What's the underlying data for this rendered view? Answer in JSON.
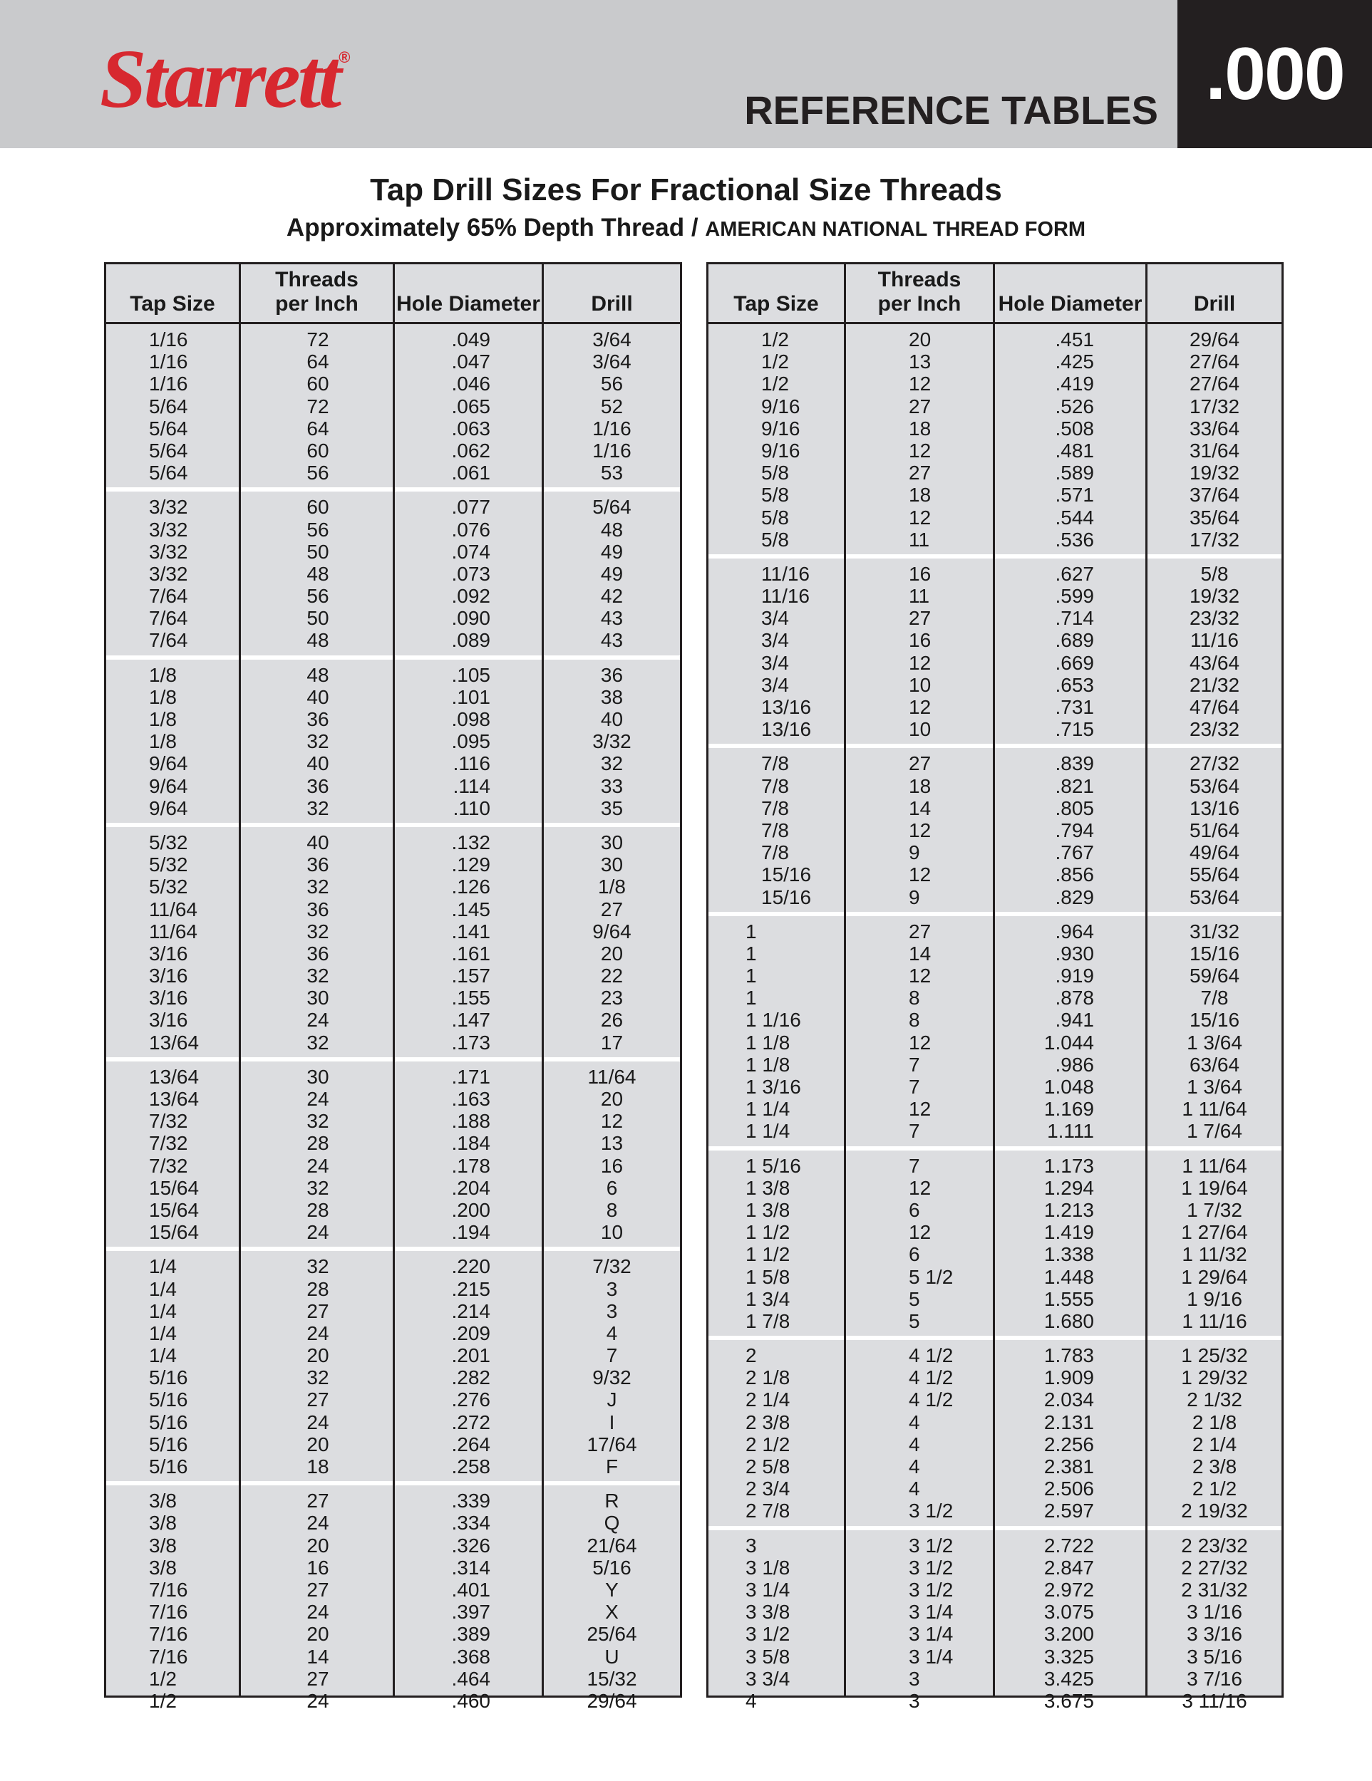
{
  "header": {
    "logo_text": "Starrett",
    "logo_mark": "®",
    "section_title": "REFERENCE TABLES",
    "badge": ".000",
    "brand_color": "#d7282f"
  },
  "title": "Tap Drill Sizes For Fractional Size Threads",
  "subtitle_main": "Approximately 65% Depth Thread / ",
  "subtitle_small": "AMERICAN NATIONAL THREAD FORM",
  "columns": [
    "Tap Size",
    "Threads\nper Inch",
    "Hole Diameter",
    "Drill"
  ],
  "tables": [
    {
      "groups": [
        [
          [
            "1/16",
            "72",
            ".049",
            "3/64"
          ],
          [
            "1/16",
            "64",
            ".047",
            "3/64"
          ],
          [
            "1/16",
            "60",
            ".046",
            "56"
          ],
          [
            "5/64",
            "72",
            ".065",
            "52"
          ],
          [
            "5/64",
            "64",
            ".063",
            "1/16"
          ],
          [
            "5/64",
            "60",
            ".062",
            "1/16"
          ],
          [
            "5/64",
            "56",
            ".061",
            "53"
          ]
        ],
        [
          [
            "3/32",
            "60",
            ".077",
            "5/64"
          ],
          [
            "3/32",
            "56",
            ".076",
            "48"
          ],
          [
            "3/32",
            "50",
            ".074",
            "49"
          ],
          [
            "3/32",
            "48",
            ".073",
            "49"
          ],
          [
            "7/64",
            "56",
            ".092",
            "42"
          ],
          [
            "7/64",
            "50",
            ".090",
            "43"
          ],
          [
            "7/64",
            "48",
            ".089",
            "43"
          ]
        ],
        [
          [
            "1/8",
            "48",
            ".105",
            "36"
          ],
          [
            "1/8",
            "40",
            ".101",
            "38"
          ],
          [
            "1/8",
            "36",
            ".098",
            "40"
          ],
          [
            "1/8",
            "32",
            ".095",
            "3/32"
          ],
          [
            "9/64",
            "40",
            ".116",
            "32"
          ],
          [
            "9/64",
            "36",
            ".114",
            "33"
          ],
          [
            "9/64",
            "32",
            ".110",
            "35"
          ]
        ],
        [
          [
            "5/32",
            "40",
            ".132",
            "30"
          ],
          [
            "5/32",
            "36",
            ".129",
            "30"
          ],
          [
            "5/32",
            "32",
            ".126",
            "1/8"
          ],
          [
            "11/64",
            "36",
            ".145",
            "27"
          ],
          [
            "11/64",
            "32",
            ".141",
            "9/64"
          ],
          [
            "3/16",
            "36",
            ".161",
            "20"
          ],
          [
            "3/16",
            "32",
            ".157",
            "22"
          ],
          [
            "3/16",
            "30",
            ".155",
            "23"
          ],
          [
            "3/16",
            "24",
            ".147",
            "26"
          ],
          [
            "13/64",
            "32",
            ".173",
            "17"
          ]
        ],
        [
          [
            "13/64",
            "30",
            ".171",
            "11/64"
          ],
          [
            "13/64",
            "24",
            ".163",
            "20"
          ],
          [
            "7/32",
            "32",
            ".188",
            "12"
          ],
          [
            "7/32",
            "28",
            ".184",
            "13"
          ],
          [
            "7/32",
            "24",
            ".178",
            "16"
          ],
          [
            "15/64",
            "32",
            ".204",
            "6"
          ],
          [
            "15/64",
            "28",
            ".200",
            "8"
          ],
          [
            "15/64",
            "24",
            ".194",
            "10"
          ]
        ],
        [
          [
            "1/4",
            "32",
            ".220",
            "7/32"
          ],
          [
            "1/4",
            "28",
            ".215",
            "3"
          ],
          [
            "1/4",
            "27",
            ".214",
            "3"
          ],
          [
            "1/4",
            "24",
            ".209",
            "4"
          ],
          [
            "1/4",
            "20",
            ".201",
            "7"
          ],
          [
            "5/16",
            "32",
            ".282",
            "9/32"
          ],
          [
            "5/16",
            "27",
            ".276",
            "J"
          ],
          [
            "5/16",
            "24",
            ".272",
            "I"
          ],
          [
            "5/16",
            "20",
            ".264",
            "17/64"
          ],
          [
            "5/16",
            "18",
            ".258",
            "F"
          ]
        ],
        [
          [
            "3/8",
            "27",
            ".339",
            "R"
          ],
          [
            "3/8",
            "24",
            ".334",
            "Q"
          ],
          [
            "3/8",
            "20",
            ".326",
            "21/64"
          ],
          [
            "3/8",
            "16",
            ".314",
            "5/16"
          ],
          [
            "7/16",
            "27",
            ".401",
            "Y"
          ],
          [
            "7/16",
            "24",
            ".397",
            "X"
          ],
          [
            "7/16",
            "20",
            ".389",
            "25/64"
          ],
          [
            "7/16",
            "14",
            ".368",
            "U"
          ],
          [
            "1/2",
            "27",
            ".464",
            "15/32"
          ],
          [
            "1/2",
            "24",
            ".460",
            "29/64"
          ]
        ]
      ]
    },
    {
      "groups": [
        [
          [
            "1/2",
            "20",
            ".451",
            "29/64"
          ],
          [
            "1/2",
            "13",
            ".425",
            "27/64"
          ],
          [
            "1/2",
            "12",
            ".419",
            "27/64"
          ],
          [
            "9/16",
            "27",
            ".526",
            "17/32"
          ],
          [
            "9/16",
            "18",
            ".508",
            "33/64"
          ],
          [
            "9/16",
            "12",
            ".481",
            "31/64"
          ],
          [
            "5/8",
            "27",
            ".589",
            "19/32"
          ],
          [
            "5/8",
            "18",
            ".571",
            "37/64"
          ],
          [
            "5/8",
            "12",
            ".544",
            "35/64"
          ],
          [
            "5/8",
            "11",
            ".536",
            "17/32"
          ]
        ],
        [
          [
            "11/16",
            "16",
            ".627",
            "5/8"
          ],
          [
            "11/16",
            "11",
            ".599",
            "19/32"
          ],
          [
            "3/4",
            "27",
            ".714",
            "23/32"
          ],
          [
            "3/4",
            "16",
            ".689",
            "11/16"
          ],
          [
            "3/4",
            "12",
            ".669",
            "43/64"
          ],
          [
            "3/4",
            "10",
            ".653",
            "21/32"
          ],
          [
            "13/16",
            "12",
            ".731",
            "47/64"
          ],
          [
            "13/16",
            "10",
            ".715",
            "23/32"
          ]
        ],
        [
          [
            "7/8",
            "27",
            ".839",
            "27/32"
          ],
          [
            "7/8",
            "18",
            ".821",
            "53/64"
          ],
          [
            "7/8",
            "14",
            ".805",
            "13/16"
          ],
          [
            "7/8",
            "12",
            ".794",
            "51/64"
          ],
          [
            "7/8",
            "9",
            ".767",
            "49/64"
          ],
          [
            "15/16",
            "12",
            ".856",
            "55/64"
          ],
          [
            "15/16",
            "9",
            ".829",
            "53/64"
          ]
        ],
        [
          [
            "1",
            "27",
            ".964",
            "31/32"
          ],
          [
            "1",
            "14",
            ".930",
            "15/16"
          ],
          [
            "1",
            "12",
            ".919",
            "59/64"
          ],
          [
            "1",
            "8",
            ".878",
            "7/8"
          ],
          [
            "1 1/16",
            "8",
            ".941",
            "15/16"
          ],
          [
            "1 1/8",
            "12",
            "1.044",
            "1 3/64"
          ],
          [
            "1 1/8",
            "7",
            ".986",
            "63/64"
          ],
          [
            "1 3/16",
            "7",
            "1.048",
            "1 3/64"
          ],
          [
            "1 1/4",
            "12",
            "1.169",
            "1 11/64"
          ],
          [
            "1 1/4",
            "7",
            "1.111",
            "1 7/64"
          ]
        ],
        [
          [
            "1 5/16",
            "7",
            "1.173",
            "1 11/64"
          ],
          [
            "1 3/8",
            "12",
            "1.294",
            "1 19/64"
          ],
          [
            "1 3/8",
            "6",
            "1.213",
            "1 7/32"
          ],
          [
            "1 1/2",
            "12",
            "1.419",
            "1 27/64"
          ],
          [
            "1 1/2",
            "6",
            "1.338",
            "1 11/32"
          ],
          [
            "1 5/8",
            "5 1/2",
            "1.448",
            "1 29/64"
          ],
          [
            "1 3/4",
            "5",
            "1.555",
            "1 9/16"
          ],
          [
            "1 7/8",
            "5",
            "1.680",
            "1 11/16"
          ]
        ],
        [
          [
            "2",
            "4 1/2",
            "1.783",
            "1 25/32"
          ],
          [
            "2 1/8",
            "4 1/2",
            "1.909",
            "1 29/32"
          ],
          [
            "2 1/4",
            "4 1/2",
            "2.034",
            "2 1/32"
          ],
          [
            "2 3/8",
            "4",
            "2.131",
            "2 1/8"
          ],
          [
            "2 1/2",
            "4",
            "2.256",
            "2 1/4"
          ],
          [
            "2 5/8",
            "4",
            "2.381",
            "2 3/8"
          ],
          [
            "2 3/4",
            "4",
            "2.506",
            "2 1/2"
          ],
          [
            "2 7/8",
            "3 1/2",
            "2.597",
            "2 19/32"
          ]
        ],
        [
          [
            "3",
            "3 1/2",
            "2.722",
            "2 23/32"
          ],
          [
            "3 1/8",
            "3 1/2",
            "2.847",
            "2 27/32"
          ],
          [
            "3 1/4",
            "3 1/2",
            "2.972",
            "2 31/32"
          ],
          [
            "3 3/8",
            "3 1/4",
            "3.075",
            "3 1/16"
          ],
          [
            "3 1/2",
            "3 1/4",
            "3.200",
            "3 3/16"
          ],
          [
            "3 5/8",
            "3 1/4",
            "3.325",
            "3 5/16"
          ],
          [
            "3 3/4",
            "3",
            "3.425",
            "3 7/16"
          ],
          [
            "4",
            "3",
            "3.675",
            "3 11/16"
          ]
        ]
      ]
    }
  ]
}
